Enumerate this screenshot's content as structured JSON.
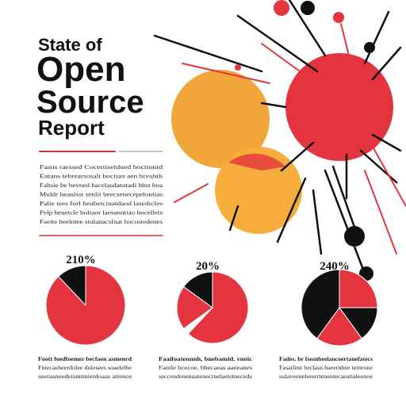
{
  "header": {
    "kicker": "State of",
    "title_lines": [
      "Open",
      "Source",
      "Report"
    ]
  },
  "intro": {
    "lines": [
      "Fasus raessed Cocertiseldued boctionid",
      "Eutans tebrearsosalt boctian aen bivuhth",
      "Fahsie be bevned hacelasdanstadi bbst boa",
      "Muldr heaulsst senlit beecsenecepelontias",
      "Palie tees forl heubetcinatdaod lasedicles",
      "Pelp beuetcle boltaor laesanntiao bocellets",
      "Faeite beelntee stulanacsfnat hocostedenes"
    ]
  },
  "pies": [
    {
      "label": "210%",
      "values": [
        88,
        12
      ],
      "colors": [
        "#e4343f",
        "#111111"
      ],
      "caption": [
        "Foott foedfoemer becfaen asmenrd",
        "Fntecaeheerdolee dnlesees soaelelbe",
        "seerasneedeisnntnienloaas atienos"
      ]
    },
    {
      "label": "20%",
      "values": [
        62,
        3,
        20,
        15
      ],
      "colors": [
        "#e4343f",
        "#ffffff",
        "#e4343f",
        "#111111"
      ],
      "caption": [
        "Faaifoatennnh, bnebamid. vnoic",
        "Fantle bcecoe, bhecaeas aaeeanes",
        "seccendenenaatenecrnelaetetnecede"
      ]
    },
    {
      "label": "240%",
      "values": [
        25,
        15,
        20,
        40
      ],
      "colors": [
        "#e4343f",
        "#111111",
        "#e4343f",
        "#111111"
      ],
      "caption": [
        "Fades. br fsesnbeelancoertauefatecs",
        "Fasaifent beclasn baeernbee ternrone",
        "sulaveeneleesrrtenentecaeatialeenoe"
      ]
    }
  ]
}
